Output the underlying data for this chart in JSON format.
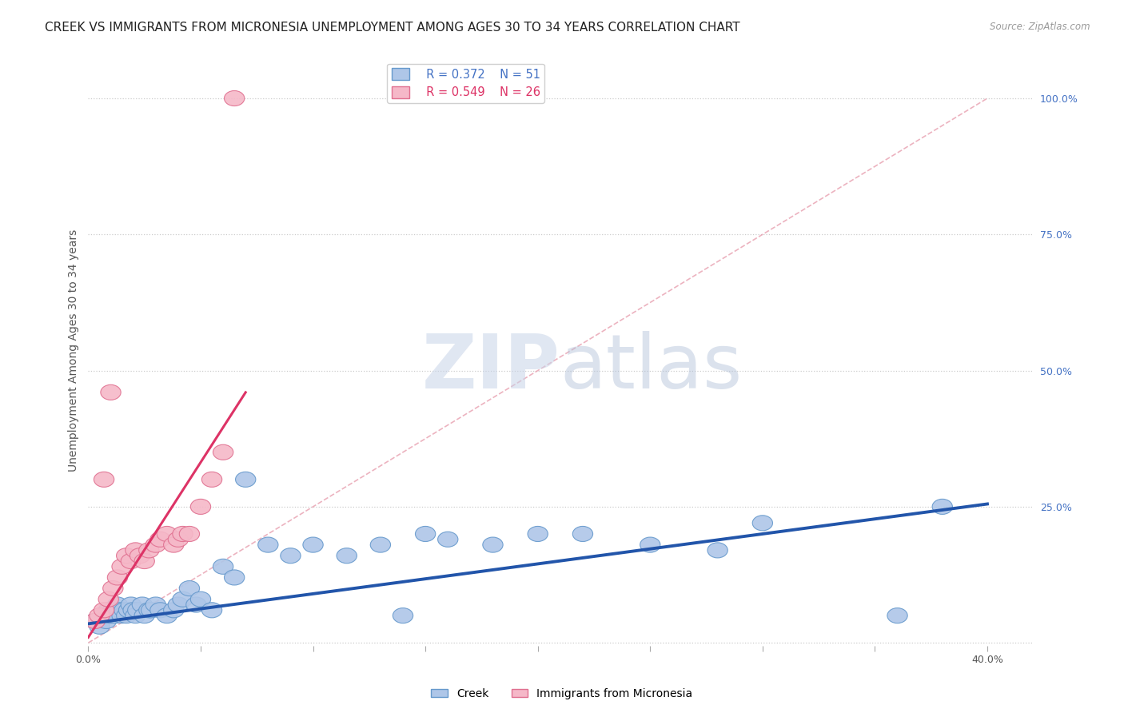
{
  "title": "CREEK VS IMMIGRANTS FROM MICRONESIA UNEMPLOYMENT AMONG AGES 30 TO 34 YEARS CORRELATION CHART",
  "source": "Source: ZipAtlas.com",
  "ylabel": "Unemployment Among Ages 30 to 34 years",
  "xlim": [
    0.0,
    0.42
  ],
  "ylim": [
    -0.005,
    1.08
  ],
  "xticks": [
    0.0,
    0.05,
    0.1,
    0.15,
    0.2,
    0.25,
    0.3,
    0.35,
    0.4
  ],
  "xticklabels": [
    "0.0%",
    "",
    "",
    "",
    "",
    "",
    "",
    "",
    "40.0%"
  ],
  "yticks_right": [
    0.0,
    0.25,
    0.5,
    0.75,
    1.0
  ],
  "yticklabels_right": [
    "",
    "25.0%",
    "50.0%",
    "75.0%",
    "100.0%"
  ],
  "legend_r1": "R = 0.372",
  "legend_n1": "N = 51",
  "legend_r2": "R = 0.549",
  "legend_n2": "N = 26",
  "creek_color": "#aec6e8",
  "creek_edge_color": "#6699cc",
  "micronesia_color": "#f5b8c8",
  "micronesia_edge_color": "#e07090",
  "creek_line_color": "#2255aa",
  "micronesia_line_color": "#dd3366",
  "ref_line_color": "#e8a0b0",
  "creek_scatter_x": [
    0.003,
    0.005,
    0.007,
    0.008,
    0.009,
    0.01,
    0.011,
    0.012,
    0.013,
    0.014,
    0.015,
    0.016,
    0.017,
    0.018,
    0.019,
    0.02,
    0.021,
    0.022,
    0.024,
    0.025,
    0.027,
    0.028,
    0.03,
    0.032,
    0.035,
    0.038,
    0.04,
    0.042,
    0.045,
    0.048,
    0.05,
    0.055,
    0.06,
    0.065,
    0.07,
    0.08,
    0.09,
    0.1,
    0.115,
    0.13,
    0.14,
    0.15,
    0.16,
    0.18,
    0.2,
    0.22,
    0.25,
    0.28,
    0.3,
    0.36,
    0.38
  ],
  "creek_scatter_y": [
    0.04,
    0.03,
    0.05,
    0.04,
    0.06,
    0.05,
    0.06,
    0.05,
    0.07,
    0.06,
    0.05,
    0.06,
    0.05,
    0.06,
    0.07,
    0.06,
    0.05,
    0.06,
    0.07,
    0.05,
    0.06,
    0.06,
    0.07,
    0.06,
    0.05,
    0.06,
    0.07,
    0.08,
    0.1,
    0.07,
    0.08,
    0.06,
    0.14,
    0.12,
    0.3,
    0.18,
    0.16,
    0.18,
    0.16,
    0.18,
    0.05,
    0.2,
    0.19,
    0.18,
    0.2,
    0.2,
    0.18,
    0.17,
    0.22,
    0.05,
    0.25
  ],
  "micronesia_scatter_x": [
    0.003,
    0.005,
    0.007,
    0.009,
    0.011,
    0.013,
    0.015,
    0.017,
    0.019,
    0.021,
    0.023,
    0.025,
    0.027,
    0.03,
    0.032,
    0.035,
    0.038,
    0.04,
    0.042,
    0.045,
    0.05,
    0.055,
    0.06,
    0.007,
    0.01,
    0.065
  ],
  "micronesia_scatter_y": [
    0.04,
    0.05,
    0.06,
    0.08,
    0.1,
    0.12,
    0.14,
    0.16,
    0.15,
    0.17,
    0.16,
    0.15,
    0.17,
    0.18,
    0.19,
    0.2,
    0.18,
    0.19,
    0.2,
    0.2,
    0.25,
    0.3,
    0.35,
    0.3,
    0.46,
    1.0
  ],
  "creek_trend_x": [
    0.0,
    0.4
  ],
  "creek_trend_y": [
    0.035,
    0.255
  ],
  "micronesia_trend_x": [
    0.0,
    0.07
  ],
  "micronesia_trend_y": [
    0.01,
    0.46
  ],
  "ref_line_x": [
    0.0,
    0.4
  ],
  "ref_line_y": [
    0.0,
    1.0
  ],
  "watermark_zip": "ZIP",
  "watermark_atlas": "atlas",
  "bg_color": "#ffffff",
  "grid_color": "#cccccc",
  "title_fontsize": 11,
  "axis_label_fontsize": 10,
  "tick_fontsize": 9,
  "marker_size": 120
}
